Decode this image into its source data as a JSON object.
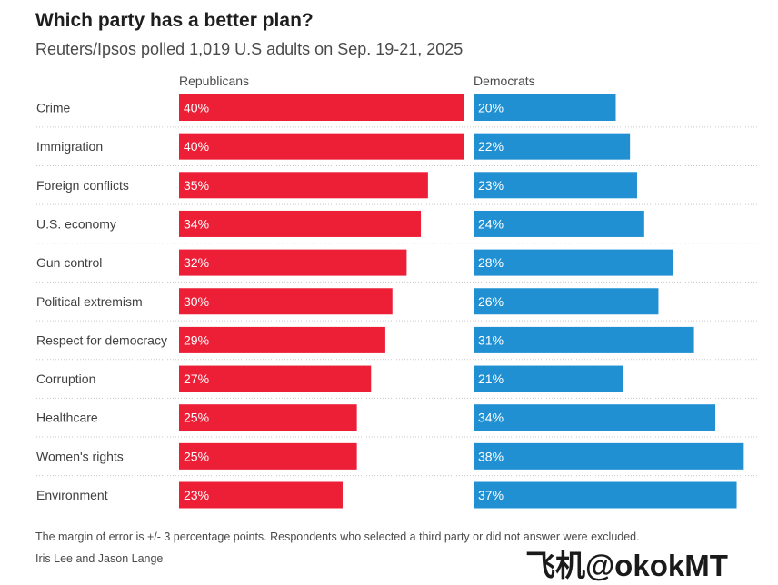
{
  "title": "Which party has a better plan?",
  "subtitle": "Reuters/Ipsos polled 1,019 U.S adults on Sep. 19-21, 2025",
  "footnote": "The margin of error is +/- 3 percentage points. Respondents who selected a third party or did not answer were excluded.",
  "credit": "Iris Lee and Jason Lange",
  "watermark": "飞机@okokMT",
  "colors": {
    "republicans": "#ec1f37",
    "democrats": "#2190d3",
    "gridline": "#c8c8c8"
  },
  "chart_data": {
    "type": "bar",
    "orientation": "horizontal",
    "categories": [
      "Crime",
      "Immigration",
      "Foreign conflicts",
      "U.S. economy",
      "Gun control",
      "Political extremism",
      "Respect for democracy",
      "Corruption",
      "Healthcare",
      "Women's rights",
      "Environment"
    ],
    "series": [
      {
        "name": "Republicans",
        "values": [
          40,
          40,
          35,
          34,
          32,
          30,
          29,
          27,
          25,
          25,
          23
        ]
      },
      {
        "name": "Democrats",
        "values": [
          20,
          22,
          23,
          24,
          28,
          26,
          31,
          21,
          34,
          38,
          37
        ]
      }
    ],
    "value_suffix": "%",
    "xlim": [
      0,
      40
    ]
  }
}
